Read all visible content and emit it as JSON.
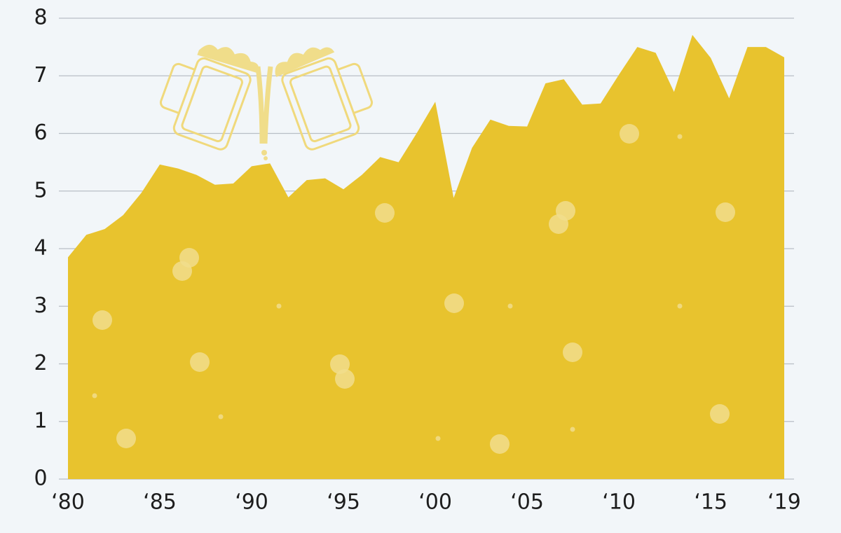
{
  "chart_data": {
    "type": "area",
    "x": [
      1980,
      1981,
      1982,
      1983,
      1984,
      1985,
      1986,
      1987,
      1988,
      1989,
      1990,
      1991,
      1992,
      1993,
      1994,
      1995,
      1996,
      1997,
      1998,
      1999,
      2000,
      2001,
      2002,
      2003,
      2004,
      2005,
      2006,
      2007,
      2008,
      2009,
      2010,
      2011,
      2012,
      2013,
      2014,
      2015,
      2016,
      2017,
      2018,
      2019
    ],
    "values": [
      3.85,
      4.24,
      4.34,
      4.58,
      4.97,
      5.46,
      5.39,
      5.28,
      5.11,
      5.13,
      5.43,
      5.48,
      4.89,
      5.19,
      5.22,
      5.03,
      5.28,
      5.59,
      5.5,
      6.01,
      6.55,
      4.88,
      5.75,
      6.24,
      6.13,
      6.12,
      6.87,
      6.94,
      6.5,
      6.52,
      7.02,
      7.5,
      7.4,
      6.72,
      7.71,
      7.31,
      6.61,
      7.5,
      7.5,
      7.32
    ],
    "color": "#e8c32e",
    "xlim": [
      1980,
      2019
    ],
    "xticks": [
      {
        "value": 1980,
        "label": "‘80"
      },
      {
        "value": 1985,
        "label": "‘85"
      },
      {
        "value": 1990,
        "label": "‘90"
      },
      {
        "value": 1995,
        "label": "‘95"
      },
      {
        "value": 2000,
        "label": "‘00"
      },
      {
        "value": 2005,
        "label": "‘05"
      },
      {
        "value": 2010,
        "label": "‘10"
      },
      {
        "value": 2015,
        "label": "‘15"
      },
      {
        "value": 2019,
        "label": "‘19"
      }
    ],
    "ylim": [
      0,
      8
    ],
    "yticks": [
      0,
      1,
      2,
      3,
      4,
      5,
      6,
      7,
      8
    ],
    "grid": true
  }
}
